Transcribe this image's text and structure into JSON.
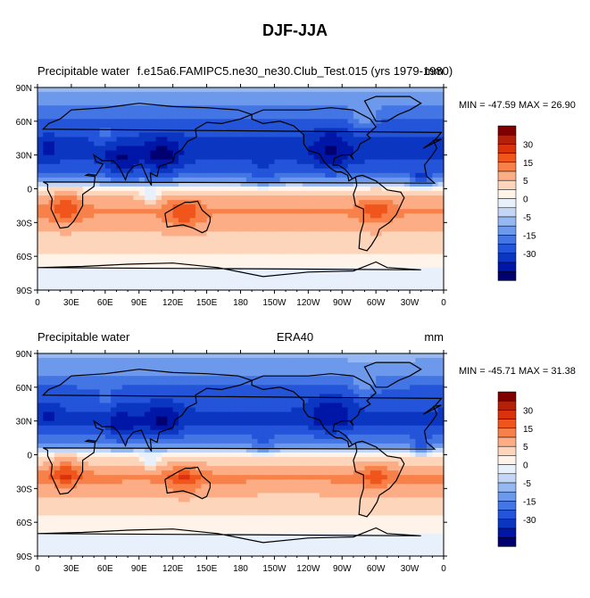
{
  "title": "DJF-JJA",
  "colorbar": {
    "colors": [
      "#800000",
      "#b4210a",
      "#d9320c",
      "#f0551b",
      "#f8814a",
      "#fcad85",
      "#fdd5bb",
      "#fff3ea",
      "#e8f0fb",
      "#c3d6f7",
      "#96b8f2",
      "#6d99ec",
      "#4475e4",
      "#2354d9",
      "#0b36c2",
      "#0016a6",
      "#000070"
    ],
    "labels": [
      "30",
      "15",
      "5",
      "0",
      "-5",
      "-15",
      "-30"
    ]
  },
  "axes": {
    "y_ticks": [
      "90N",
      "60N",
      "30N",
      "0",
      "30S",
      "60S",
      "90S"
    ],
    "x_ticks": [
      "0",
      "30E",
      "60E",
      "90E",
      "120E",
      "150E",
      "180",
      "150W",
      "120W",
      "90W",
      "60W",
      "30W",
      "0"
    ]
  },
  "panels": [
    {
      "left_title": "Precipitable water",
      "center_title": "f.e15a6.FAMIPC5.ne30_ne30.Club_Test.015 (yrs 1979-1980)",
      "units": "mm",
      "min_label": "MIN = -47.59",
      "max_label": "MAX =  26.90"
    },
    {
      "left_title": "Precipitable water",
      "center_title": "ERA40",
      "units": "mm",
      "min_label": "MIN = -45.71",
      "max_label": "MAX =  31.38"
    }
  ],
  "chart_data": [
    {
      "type": "heatmap",
      "title": "DJF-JJA",
      "subtitle": "f.e15a6.FAMIPC5.ne30_ne30.Club_Test.015 (yrs 1979-1980)",
      "variable": "Precipitable water",
      "units": "mm",
      "x_range": [
        0,
        360
      ],
      "y_range": [
        -90,
        90
      ],
      "min": -47.59,
      "max": 26.9,
      "contour_levels": [
        -30,
        -25,
        -20,
        -15,
        -10,
        -5,
        -2.5,
        0,
        2.5,
        5,
        10,
        15,
        20,
        25,
        30
      ],
      "lat_profile": [
        {
          "lat": 90,
          "value": -3
        },
        {
          "lat": 75,
          "value": -9
        },
        {
          "lat": 60,
          "value": -16
        },
        {
          "lat": 45,
          "value": -20
        },
        {
          "lat": 30,
          "value": -22
        },
        {
          "lat": 20,
          "value": -18
        },
        {
          "lat": 10,
          "value": -12
        },
        {
          "lat": 5,
          "value": -4
        },
        {
          "lat": 0,
          "value": 4
        },
        {
          "lat": -10,
          "value": 12
        },
        {
          "lat": -20,
          "value": 16
        },
        {
          "lat": -30,
          "value": 13
        },
        {
          "lat": -45,
          "value": 8
        },
        {
          "lat": -60,
          "value": 4
        },
        {
          "lat": -75,
          "value": 2
        },
        {
          "lat": -90,
          "value": 1
        }
      ]
    },
    {
      "type": "heatmap",
      "title": "DJF-JJA",
      "subtitle": "ERA40",
      "variable": "Precipitable water",
      "units": "mm",
      "x_range": [
        0,
        360
      ],
      "y_range": [
        -90,
        90
      ],
      "min": -45.71,
      "max": 31.38,
      "contour_levels": [
        -30,
        -25,
        -20,
        -15,
        -10,
        -5,
        -2.5,
        0,
        2.5,
        5,
        10,
        15,
        20,
        25,
        30
      ],
      "lat_profile": [
        {
          "lat": 90,
          "value": -3
        },
        {
          "lat": 75,
          "value": -8
        },
        {
          "lat": 60,
          "value": -15
        },
        {
          "lat": 45,
          "value": -19
        },
        {
          "lat": 30,
          "value": -21
        },
        {
          "lat": 20,
          "value": -16
        },
        {
          "lat": 10,
          "value": -10
        },
        {
          "lat": 5,
          "value": -3
        },
        {
          "lat": 0,
          "value": 3
        },
        {
          "lat": -10,
          "value": 11
        },
        {
          "lat": -20,
          "value": 17
        },
        {
          "lat": -30,
          "value": 12
        },
        {
          "lat": -45,
          "value": 7
        },
        {
          "lat": -60,
          "value": 4
        },
        {
          "lat": -75,
          "value": 2
        },
        {
          "lat": -90,
          "value": 1
        }
      ]
    }
  ]
}
